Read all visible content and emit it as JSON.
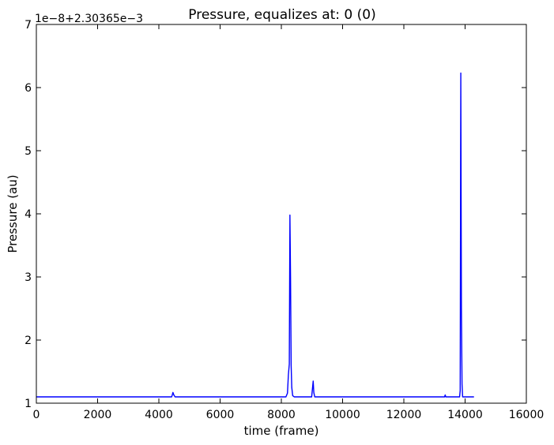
{
  "chart_data": {
    "type": "line",
    "title": "Pressure, equalizes at: 0 (0)",
    "xlabel": "time (frame)",
    "ylabel": "Pressure (au)",
    "offset_text": "1e−8+2.30365e−3",
    "xlim": [
      0,
      16000
    ],
    "ylim": [
      1,
      7
    ],
    "xticks": [
      0,
      2000,
      4000,
      6000,
      8000,
      10000,
      12000,
      14000,
      16000
    ],
    "xtick_labels": [
      "0",
      "2000",
      "4000",
      "6000",
      "8000",
      "10000",
      "12000",
      "14000",
      "16000"
    ],
    "yticks": [
      1,
      2,
      3,
      4,
      5,
      6,
      7
    ],
    "ytick_labels": [
      "1",
      "2",
      "3",
      "4",
      "5",
      "6",
      "7"
    ],
    "grid": false,
    "legend": "none",
    "series": [
      {
        "color": "#0000ff",
        "x": [
          0,
          4420,
          4460,
          4490,
          4530,
          8150,
          8200,
          8230,
          8260,
          8280,
          8300,
          8320,
          8340,
          8370,
          8420,
          8990,
          9020,
          9040,
          9060,
          9090,
          13330,
          13350,
          13370,
          13820,
          13840,
          13860,
          13880,
          13900,
          13920,
          14290
        ],
        "y": [
          1.1,
          1.1,
          1.17,
          1.13,
          1.1,
          1.1,
          1.16,
          1.45,
          1.62,
          3.98,
          3.0,
          1.6,
          1.25,
          1.12,
          1.1,
          1.1,
          1.25,
          1.35,
          1.17,
          1.1,
          1.1,
          1.13,
          1.1,
          1.1,
          1.2,
          6.23,
          2.5,
          1.3,
          1.1,
          1.1
        ]
      }
    ]
  }
}
